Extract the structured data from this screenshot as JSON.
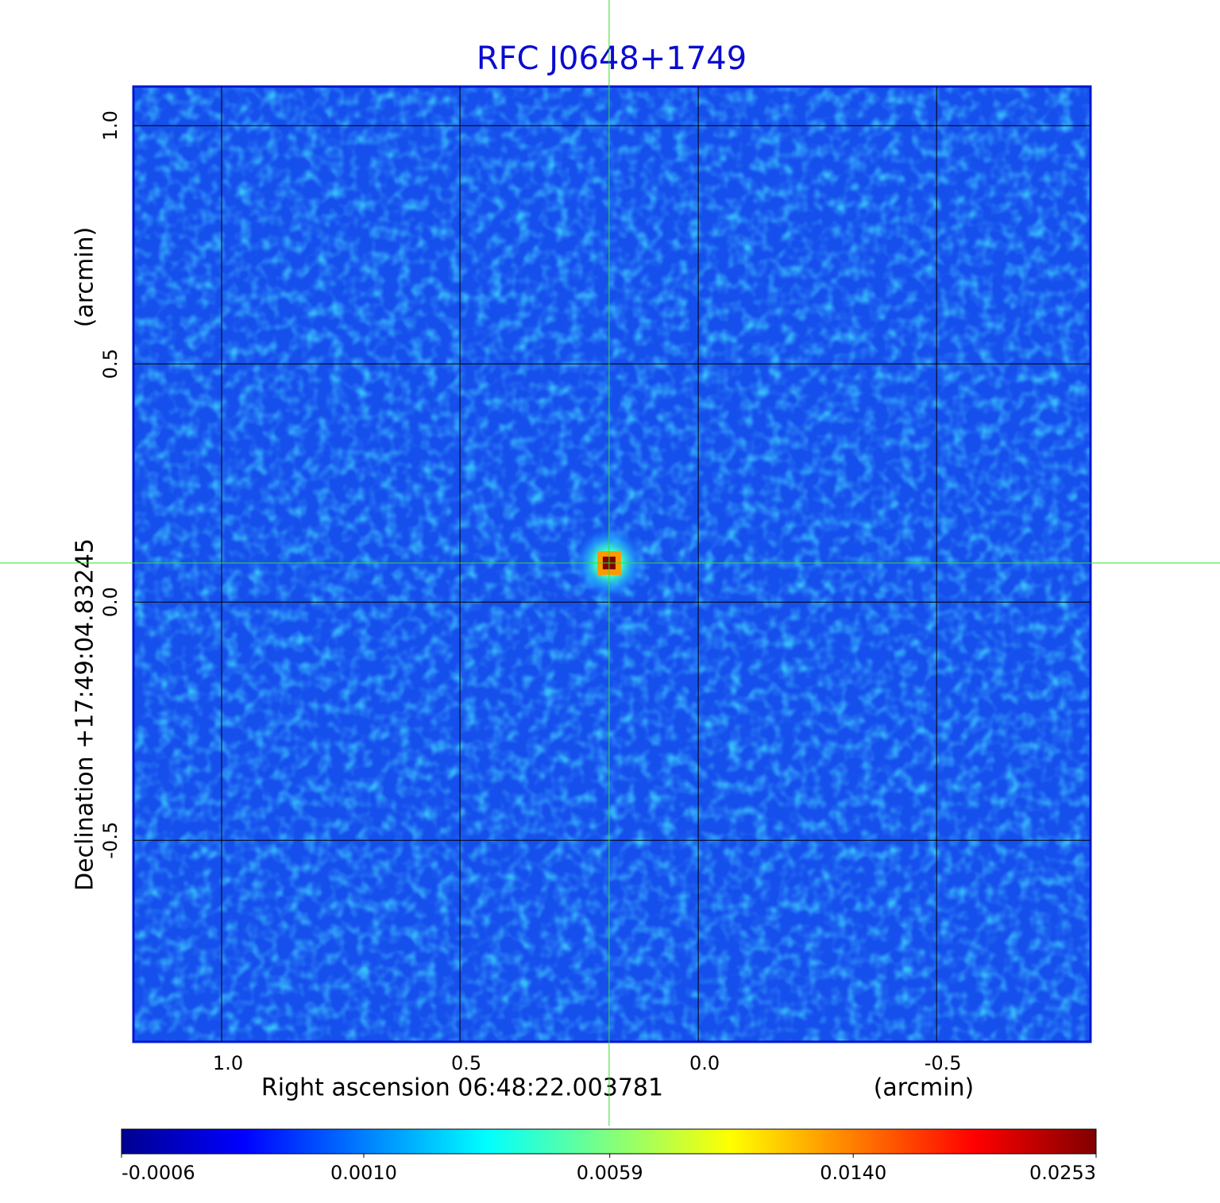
{
  "chart_data": {
    "type": "image",
    "title": "RFC J0648+1749",
    "x_label": "Right ascension  06:48:22.003781",
    "x_unit": "(arcmin)",
    "y_label": "Declination  +17:49:04.83245",
    "y_unit": "(arcmin)",
    "xlim": [
      1.185,
      -0.823
    ],
    "ylim": [
      -0.923,
      1.082
    ],
    "xticks": [
      {
        "value": 1,
        "label": "1.0"
      },
      0.5,
      {
        "value": 0,
        "label": "0.0"
      },
      -0.5
    ],
    "yticks": [
      {
        "value": 1,
        "label": "1.0"
      },
      0.5,
      {
        "value": 0,
        "label": "0.0"
      },
      -0.5
    ],
    "grid": true,
    "source": {
      "x": 0.187,
      "y": 0.082,
      "value": 0.0253
    },
    "colorbar": {
      "colormap": "jet",
      "scale": "sqrt",
      "lim": [
        -0.0006,
        0.0253
      ],
      "ticks": [
        -0.0006,
        {
          "value": 0.001,
          "label": "0.0010"
        },
        0.0059,
        {
          "value": 0.014,
          "label": "0.0140"
        },
        0.0253
      ]
    }
  }
}
